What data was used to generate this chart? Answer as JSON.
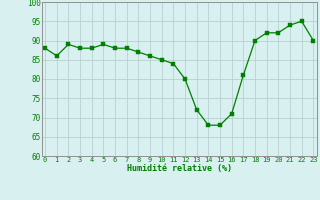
{
  "x": [
    0,
    1,
    2,
    3,
    4,
    5,
    6,
    7,
    8,
    9,
    10,
    11,
    12,
    13,
    14,
    15,
    16,
    17,
    18,
    19,
    20,
    21,
    22,
    23
  ],
  "y": [
    88,
    86,
    89,
    88,
    88,
    89,
    88,
    88,
    87,
    86,
    85,
    84,
    80,
    72,
    68,
    68,
    71,
    81,
    90,
    92,
    92,
    94,
    95,
    90
  ],
  "line_color": "#008000",
  "marker_color": "#008000",
  "bg_color": "#d8f0f0",
  "grid_color": "#b8d0d0",
  "xlabel": "Humidité relative (%)",
  "xlabel_color": "#008000",
  "ylim": [
    60,
    100
  ],
  "xlim": [
    -0.3,
    23.3
  ],
  "yticks": [
    60,
    65,
    70,
    75,
    80,
    85,
    90,
    95,
    100
  ],
  "xticks": [
    0,
    1,
    2,
    3,
    4,
    5,
    6,
    7,
    8,
    9,
    10,
    11,
    12,
    13,
    14,
    15,
    16,
    17,
    18,
    19,
    20,
    21,
    22,
    23
  ],
  "tick_fontsize": 5.0,
  "ytick_fontsize": 5.5,
  "xlabel_fontsize": 6.0,
  "tick_color": "#008000",
  "spine_color": "#909090",
  "linewidth": 0.9,
  "markersize": 2.2
}
